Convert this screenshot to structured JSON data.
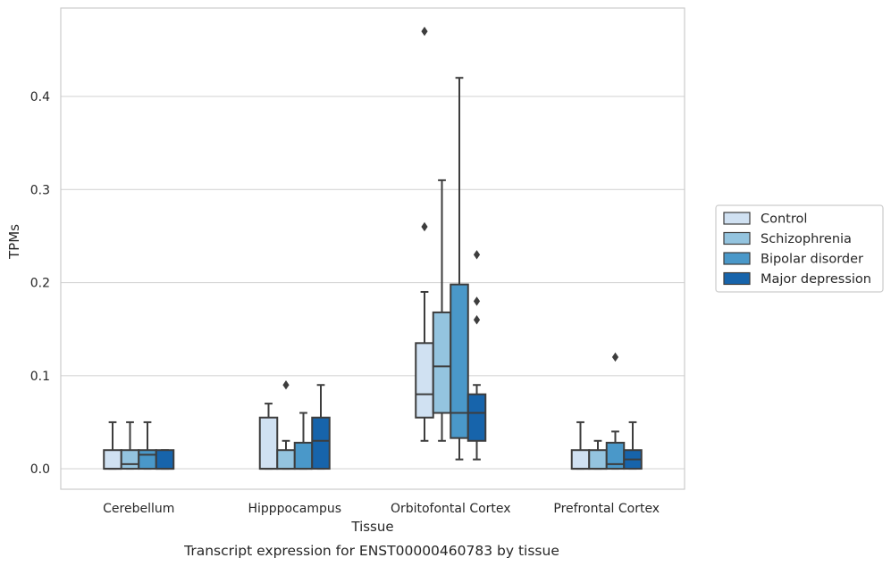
{
  "chart_data": {
    "type": "boxplot",
    "title": "Transcript expression for ENST00000460783 by tissue",
    "xlabel": "Tissue",
    "ylabel": "TPMs",
    "ylim": [
      -0.022,
      0.495
    ],
    "yticks": [
      0.0,
      0.1,
      0.2,
      0.3,
      0.4
    ],
    "ytick_labels": [
      "0.0",
      "0.1",
      "0.2",
      "0.3",
      "0.4"
    ],
    "grid": "horizontal",
    "legend_position": "right",
    "categories": [
      "Cerebellum",
      "Hipppocampus",
      "Orbitofontal Cortex",
      "Prefrontal Cortex"
    ],
    "series": [
      {
        "name": "Control",
        "color": "#d0e1f2",
        "boxes": [
          {
            "whislo": 0.0,
            "q1": 0.0,
            "med": 0.0,
            "q3": 0.02,
            "whishi": 0.05,
            "fliers": []
          },
          {
            "whislo": 0.0,
            "q1": 0.0,
            "med": 0.0,
            "q3": 0.055,
            "whishi": 0.07,
            "fliers": []
          },
          {
            "whislo": 0.03,
            "q1": 0.055,
            "med": 0.08,
            "q3": 0.135,
            "whishi": 0.19,
            "fliers": [
              0.26,
              0.47
            ]
          },
          {
            "whislo": 0.0,
            "q1": 0.0,
            "med": 0.0,
            "q3": 0.02,
            "whishi": 0.05,
            "fliers": []
          }
        ]
      },
      {
        "name": "Schizophrenia",
        "color": "#94c4df",
        "boxes": [
          {
            "whislo": 0.0,
            "q1": 0.0,
            "med": 0.005,
            "q3": 0.02,
            "whishi": 0.05,
            "fliers": []
          },
          {
            "whislo": 0.0,
            "q1": 0.0,
            "med": 0.0,
            "q3": 0.02,
            "whishi": 0.03,
            "fliers": [
              0.09
            ]
          },
          {
            "whislo": 0.03,
            "q1": 0.06,
            "med": 0.11,
            "q3": 0.168,
            "whishi": 0.31,
            "fliers": []
          },
          {
            "whislo": 0.0,
            "q1": 0.0,
            "med": 0.0,
            "q3": 0.02,
            "whishi": 0.03,
            "fliers": []
          }
        ]
      },
      {
        "name": "Bipolar disorder",
        "color": "#4a98c9",
        "boxes": [
          {
            "whislo": 0.0,
            "q1": 0.0,
            "med": 0.015,
            "q3": 0.02,
            "whishi": 0.05,
            "fliers": []
          },
          {
            "whislo": 0.0,
            "q1": 0.0,
            "med": 0.0,
            "q3": 0.028,
            "whishi": 0.06,
            "fliers": []
          },
          {
            "whislo": 0.01,
            "q1": 0.033,
            "med": 0.06,
            "q3": 0.198,
            "whishi": 0.42,
            "fliers": []
          },
          {
            "whislo": 0.0,
            "q1": 0.0,
            "med": 0.005,
            "q3": 0.028,
            "whishi": 0.04,
            "fliers": [
              0.12
            ]
          }
        ]
      },
      {
        "name": "Major depression",
        "color": "#1764ab",
        "boxes": [
          {
            "whislo": 0.0,
            "q1": 0.0,
            "med": 0.0,
            "q3": 0.02,
            "whishi": 0.02,
            "fliers": []
          },
          {
            "whislo": 0.0,
            "q1": 0.0,
            "med": 0.03,
            "q3": 0.055,
            "whishi": 0.09,
            "fliers": []
          },
          {
            "whislo": 0.01,
            "q1": 0.03,
            "med": 0.06,
            "q3": 0.08,
            "whishi": 0.09,
            "fliers": [
              0.16,
              0.18,
              0.23
            ]
          },
          {
            "whislo": 0.0,
            "q1": 0.0,
            "med": 0.01,
            "q3": 0.02,
            "whishi": 0.05,
            "fliers": []
          }
        ]
      }
    ]
  }
}
